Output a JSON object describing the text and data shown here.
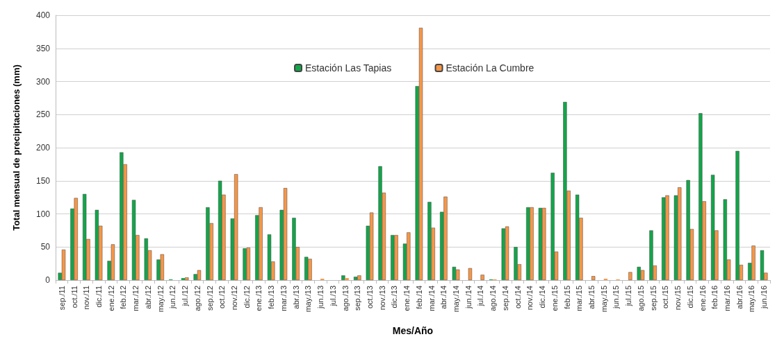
{
  "chart_data": {
    "type": "bar",
    "xlabel": "Mes/Año",
    "ylabel": "Total mensual de precipitaciones (mm)",
    "categories": [
      "sep./11",
      "oct./11",
      "nov./11",
      "dic./11",
      "ene./12",
      "feb./12",
      "mar./12",
      "abr./12",
      "may./12",
      "jun./12",
      "jul./12",
      "ago./12",
      "sep./12",
      "oct./12",
      "nov./12",
      "dic./12",
      "ene./13",
      "feb./13",
      "mar./13",
      "abr./13",
      "may./13",
      "jun./13",
      "jul./13",
      "ago./13",
      "sep./13",
      "oct./13",
      "nov./13",
      "dic./13",
      "ene./14",
      "feb./14",
      "mar./14",
      "abr./14",
      "may./14",
      "jun./14",
      "jul./14",
      "ago./14",
      "sep./14",
      "oct./14",
      "nov./14",
      "dic./14",
      "ene./15",
      "feb./15",
      "mar./15",
      "abr./15",
      "may./15",
      "jun./15",
      "jul./15",
      "ago./15",
      "sep./15",
      "oct./15",
      "nov./15",
      "dic./15",
      "ene./16",
      "feb./16",
      "mar./16",
      "abr./16",
      "may./16",
      "jun./16"
    ],
    "series": [
      {
        "name": "Estación Las Tapias",
        "color": "#12a64a",
        "values": [
          11,
          108,
          130,
          106,
          29,
          193,
          121,
          63,
          31,
          1,
          3,
          9,
          110,
          150,
          93,
          48,
          98,
          69,
          106,
          94,
          35,
          0,
          0,
          7,
          5,
          82,
          172,
          68,
          55,
          293,
          118,
          103,
          20,
          0,
          0,
          1,
          78,
          50,
          110,
          109,
          162,
          269,
          129,
          0,
          0,
          0,
          0,
          20,
          75,
          125,
          128,
          151,
          252,
          159,
          122,
          195,
          26,
          45
        ]
      },
      {
        "name": "Estación La Cumbre",
        "color": "#f79646",
        "values": [
          46,
          124,
          62,
          82,
          54,
          175,
          68,
          45,
          39,
          0,
          4,
          15,
          86,
          129,
          160,
          49,
          110,
          28,
          139,
          50,
          32,
          2,
          0,
          3,
          7,
          102,
          132,
          68,
          72,
          381,
          79,
          126,
          16,
          18,
          8,
          1,
          81,
          24,
          110,
          109,
          43,
          135,
          94,
          6,
          2,
          1,
          12,
          15,
          22,
          128,
          140,
          77,
          119,
          75,
          31,
          23,
          52,
          11
        ]
      }
    ],
    "ylim": [
      0,
      400
    ],
    "yticks": [
      0,
      50,
      100,
      150,
      200,
      250,
      300,
      350,
      400
    ],
    "grid": "y",
    "legend": "top"
  }
}
